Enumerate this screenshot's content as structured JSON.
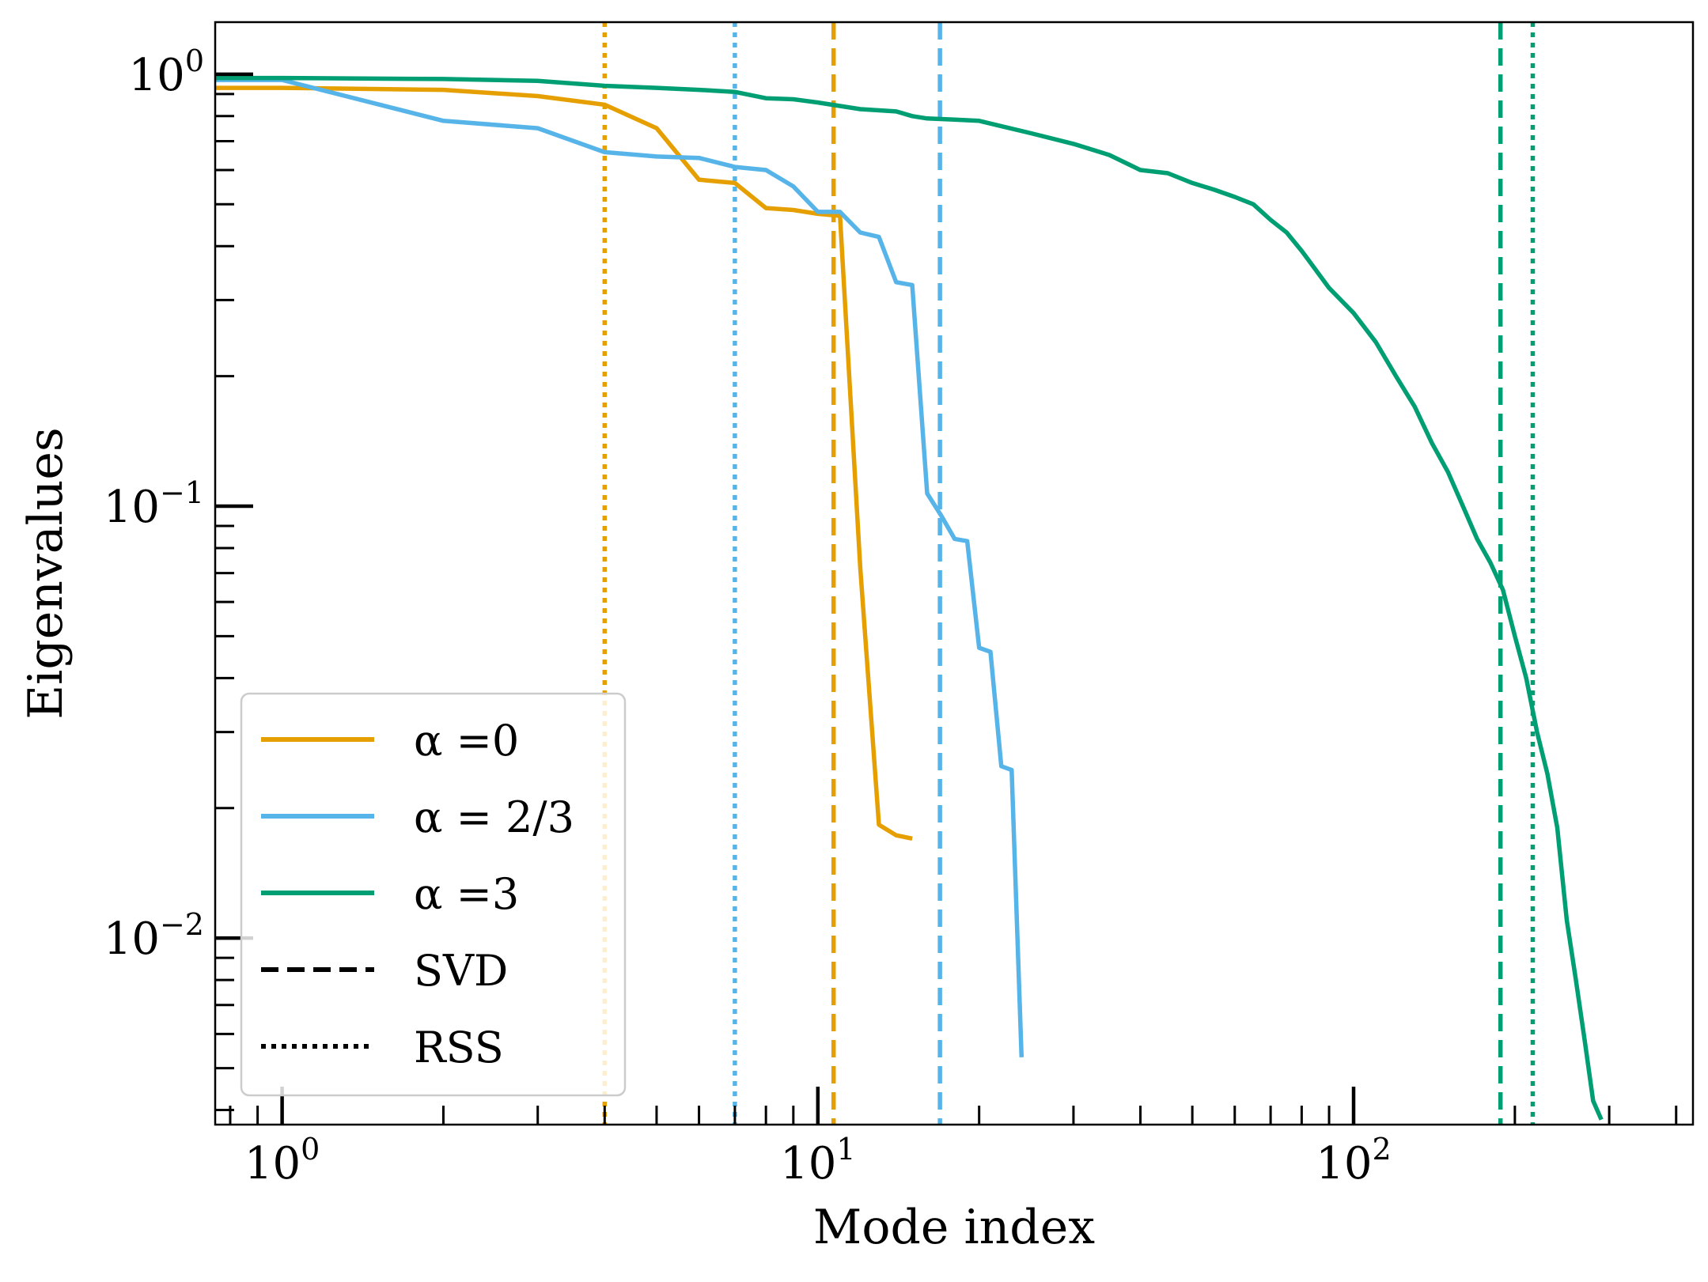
{
  "chart_data": {
    "type": "line",
    "title": "",
    "xlabel": "Mode index",
    "ylabel": "Eigenvalues",
    "xscale": "log",
    "yscale": "log",
    "xlim": [
      0.75,
      430
    ],
    "ylim": [
      0.0037,
      1.32
    ],
    "grid": false,
    "legend_position": "lower-left",
    "x_tick_labels": [
      {
        "value": 1,
        "label": "10",
        "exp": "0"
      },
      {
        "value": 10,
        "label": "10",
        "exp": "1"
      },
      {
        "value": 100,
        "label": "10",
        "exp": "2"
      }
    ],
    "y_tick_labels": [
      {
        "value": 1,
        "label": "10",
        "exp": "0"
      },
      {
        "value": 0.1,
        "label": "10",
        "exp": "−1"
      },
      {
        "value": 0.01,
        "label": "10",
        "exp": "−2"
      }
    ],
    "legend_entries": [
      {
        "label": "α =0",
        "color": "#E69F00",
        "style": "solid"
      },
      {
        "label": "α = 2/3",
        "color": "#56B4E9",
        "style": "solid"
      },
      {
        "label": "α =3",
        "color": "#009E73",
        "style": "solid"
      },
      {
        "label": "SVD",
        "color": "#000000",
        "style": "dashed"
      },
      {
        "label": "RSS",
        "color": "#000000",
        "style": "dotted"
      }
    ],
    "series": [
      {
        "name": "α =0",
        "color": "#E69F00",
        "x": [
          0.75,
          1,
          2,
          3,
          4,
          5,
          6,
          7,
          8,
          9,
          10,
          11,
          12,
          13,
          14,
          15
        ],
        "y": [
          0.93,
          0.93,
          0.92,
          0.89,
          0.85,
          0.75,
          0.57,
          0.56,
          0.49,
          0.485,
          0.475,
          0.47,
          0.072,
          0.0183,
          0.0173,
          0.017
        ]
      },
      {
        "name": "α = 2/3",
        "color": "#56B4E9",
        "x": [
          0.75,
          1,
          2,
          3,
          4,
          5,
          6,
          7,
          8,
          9,
          10,
          11,
          12,
          13,
          14,
          15,
          16,
          17,
          18,
          19,
          20,
          21,
          22,
          23,
          24
        ],
        "y": [
          0.97,
          0.97,
          0.78,
          0.75,
          0.66,
          0.645,
          0.64,
          0.61,
          0.6,
          0.55,
          0.48,
          0.48,
          0.43,
          0.42,
          0.33,
          0.325,
          0.107,
          0.095,
          0.084,
          0.083,
          0.047,
          0.046,
          0.025,
          0.0245,
          0.0053
        ]
      },
      {
        "name": "α =3",
        "color": "#009E73",
        "x": [
          0.75,
          1,
          2,
          3,
          4,
          5,
          6,
          7,
          8,
          9,
          10,
          12,
          14,
          15,
          16,
          18,
          20,
          25,
          30,
          35,
          40,
          45,
          50,
          55,
          60,
          65,
          70,
          75,
          80,
          90,
          100,
          110,
          120,
          130,
          140,
          150,
          160,
          170,
          180,
          190,
          200,
          210,
          220,
          230,
          240,
          250,
          260,
          270,
          280,
          290
        ],
        "y": [
          0.98,
          0.98,
          0.975,
          0.965,
          0.94,
          0.93,
          0.92,
          0.91,
          0.88,
          0.875,
          0.86,
          0.83,
          0.82,
          0.8,
          0.79,
          0.785,
          0.78,
          0.73,
          0.69,
          0.65,
          0.6,
          0.59,
          0.56,
          0.54,
          0.52,
          0.5,
          0.46,
          0.43,
          0.39,
          0.32,
          0.28,
          0.24,
          0.2,
          0.17,
          0.14,
          0.12,
          0.1,
          0.084,
          0.074,
          0.064,
          0.05,
          0.04,
          0.03,
          0.024,
          0.018,
          0.011,
          0.008,
          0.0058,
          0.0042,
          0.0038
        ]
      }
    ],
    "vertical_lines": [
      {
        "x": 4,
        "color": "#E69F00",
        "style": "dotted",
        "method": "RSS"
      },
      {
        "x": 7,
        "color": "#56B4E9",
        "style": "dotted",
        "method": "RSS"
      },
      {
        "x": 10.7,
        "color": "#E69F00",
        "style": "dashed",
        "method": "SVD"
      },
      {
        "x": 16.9,
        "color": "#56B4E9",
        "style": "dashed",
        "method": "SVD"
      },
      {
        "x": 188,
        "color": "#009E73",
        "style": "dashed",
        "method": "SVD"
      },
      {
        "x": 216,
        "color": "#009E73",
        "style": "dotted",
        "method": "RSS"
      }
    ]
  }
}
